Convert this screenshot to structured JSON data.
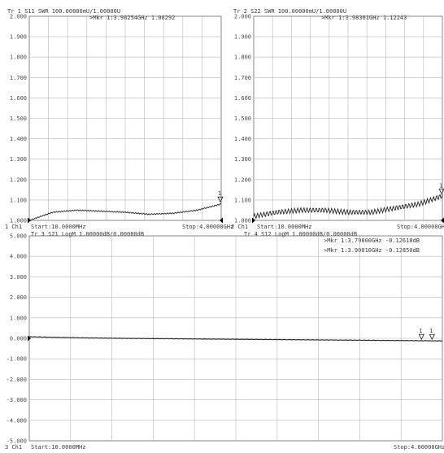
{
  "panels": [
    {
      "id": "tr1",
      "header": "Tr 1  S11 SWR 100.00000mU/1.00000U",
      "marker": ">Mkr 1:3.98254GHz 1.08292",
      "marker2": "",
      "footer_channel": "1  Ch1",
      "footer_start": "Start:10.0000MHz",
      "footer_stop": "Stop:4.00000GHz",
      "marker_id": "1",
      "yticks": [
        "2.000",
        "1.900",
        "1.800",
        "1.700",
        "1.600",
        "1.500",
        "1.400",
        "1.300",
        "1.200",
        "1.100",
        "1.000"
      ]
    },
    {
      "id": "tr2",
      "header": "Tr 2  S22 SWR 100.00000mU/1.00000U",
      "marker": ">Mkr 1:3.98361GHz 1.12243",
      "marker2": "",
      "footer_channel": "2  Ch1",
      "footer_start": "Start:10.0000MHz",
      "footer_stop": "Stop:4.00000GHz",
      "marker_id": "1",
      "yticks": [
        "2.000",
        "1.900",
        "1.800",
        "1.700",
        "1.600",
        "1.500",
        "1.400",
        "1.300",
        "1.200",
        "1.100",
        "1.000"
      ]
    },
    {
      "id": "tr34",
      "header": "Tr 3  S21 LogM 1.00000dB/0.00000dB",
      "header2": "Tr 4  S12 LogM 1.00000dB/0.00000dB",
      "marker": ">Mkr 1:3.79800GHz -0.12618dB",
      "marker2": ">Mkr 1:3.90010GHz -0.12850dB",
      "footer_channel": "3  Ch1",
      "footer_start": "Start:10.0000MHz",
      "footer_stop": "Stop:4.00000GHz",
      "marker_id": "1",
      "yticks": [
        "5.000",
        "4.000",
        "3.000",
        "2.000",
        "1.000",
        "0.000",
        "-1.000",
        "-2.000",
        "-3.000",
        "-4.000",
        "-5.000"
      ]
    }
  ],
  "chart_data": [
    {
      "type": "line",
      "title": "Tr 1  S11 SWR 100.00000mU/1.00000U",
      "x": [
        0.01,
        0.5,
        1.0,
        1.5,
        2.0,
        2.5,
        3.0,
        3.5,
        4.0
      ],
      "series": [
        {
          "values": [
            1.0,
            1.04,
            1.05,
            1.045,
            1.04,
            1.03,
            1.035,
            1.05,
            1.08
          ]
        }
      ],
      "ylim": [
        1.0,
        2.0
      ]
    },
    {
      "type": "line",
      "title": "Tr 2  S22 SWR 100.00000mU/1.00000U",
      "x": [
        0.01,
        0.5,
        1.0,
        1.5,
        2.0,
        2.5,
        3.0,
        3.5,
        4.0
      ],
      "series": [
        {
          "values": [
            1.02,
            1.04,
            1.05,
            1.05,
            1.04,
            1.04,
            1.06,
            1.08,
            1.12
          ]
        }
      ],
      "ylim": [
        1.0,
        2.0
      ]
    },
    {
      "type": "line",
      "title": "Tr 3  S21 LogM 1.00000dB/0.00000dB",
      "x": [
        0.01,
        0.5,
        1.0,
        1.5,
        2.0,
        2.5,
        3.0,
        3.5,
        4.0
      ],
      "series": [
        {
          "values": [
            0.08,
            0.03,
            0.0,
            -0.02,
            -0.04,
            -0.06,
            -0.08,
            -0.1,
            -0.12
          ]
        },
        {
          "values": [
            0.07,
            0.02,
            -0.01,
            -0.03,
            -0.05,
            -0.07,
            -0.09,
            -0.11,
            -0.13
          ]
        }
      ],
      "ylim": [
        -5.0,
        5.0
      ]
    }
  ]
}
